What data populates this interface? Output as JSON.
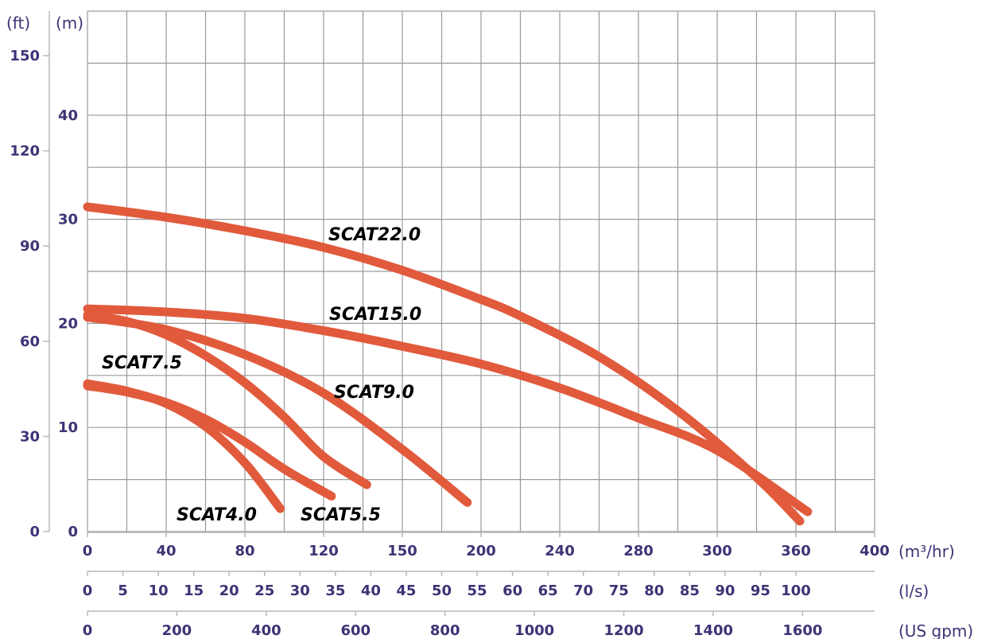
{
  "chart_data": {
    "type": "line",
    "colors": {
      "curve": "#e15a3c",
      "text": "#3b3475",
      "label": "#000000",
      "grid": "#9a9a9a"
    },
    "left_units": {
      "ft": "(ft)",
      "m": "(m)"
    },
    "ft_ticks": [
      "0",
      "30",
      "60",
      "90",
      "120",
      "150"
    ],
    "m_ticks": [
      "0",
      "10",
      "20",
      "30",
      "40"
    ],
    "x_axes": [
      {
        "unit": "(m³/hr)",
        "ticks": [
          "0",
          "40",
          "80",
          "120",
          "150",
          "200",
          "240",
          "280",
          "300",
          "360",
          "400"
        ]
      },
      {
        "unit": "(l/s)",
        "ticks": [
          "0",
          "5",
          "10",
          "15",
          "20",
          "25",
          "30",
          "35",
          "40",
          "45",
          "50",
          "55",
          "60",
          "65",
          "70",
          "75",
          "80",
          "85",
          "90",
          "95",
          "100"
        ]
      },
      {
        "unit": "(US gpm)",
        "ticks": [
          "0",
          "200",
          "400",
          "600",
          "800",
          "1000",
          "1200",
          "1400",
          "1600"
        ]
      }
    ],
    "xlim": [
      0,
      400
    ],
    "ylim_m": [
      0,
      50
    ],
    "grid": true,
    "series": [
      {
        "name": "SCAT22.0",
        "x": [
          0,
          40,
          80,
          120,
          160,
          200,
          220,
          260,
          300,
          340,
          362
        ],
        "y": [
          31.2,
          30.2,
          28.9,
          27.3,
          25.1,
          22.3,
          20.7,
          16.8,
          11.6,
          5.2,
          1.0
        ]
      },
      {
        "name": "SCAT15.0",
        "x": [
          0,
          40,
          80,
          120,
          160,
          200,
          240,
          280,
          320,
          366
        ],
        "y": [
          21.4,
          21.1,
          20.5,
          19.3,
          17.8,
          16.1,
          13.8,
          10.9,
          7.8,
          1.9
        ]
      },
      {
        "name": "SCAT9.0",
        "x": [
          0,
          40,
          80,
          120,
          160,
          193
        ],
        "y": [
          20.6,
          19.4,
          17.0,
          13.3,
          7.9,
          2.8
        ]
      },
      {
        "name": "SCAT7.5",
        "x": [
          0,
          20,
          40,
          60,
          80,
          100,
          120,
          142
        ],
        "y": [
          20.8,
          20.2,
          18.9,
          16.9,
          14.3,
          11.0,
          7.2,
          4.5
        ]
      },
      {
        "name": "SCAT5.5",
        "x": [
          0,
          20,
          40,
          60,
          80,
          100,
          124
        ],
        "y": [
          14.0,
          13.4,
          12.4,
          10.8,
          8.6,
          6.0,
          3.4
        ]
      },
      {
        "name": "SCAT4.0",
        "x": [
          0,
          20,
          40,
          60,
          80,
          98
        ],
        "y": [
          14.2,
          13.5,
          12.3,
          10.1,
          6.6,
          2.2
        ]
      }
    ]
  }
}
